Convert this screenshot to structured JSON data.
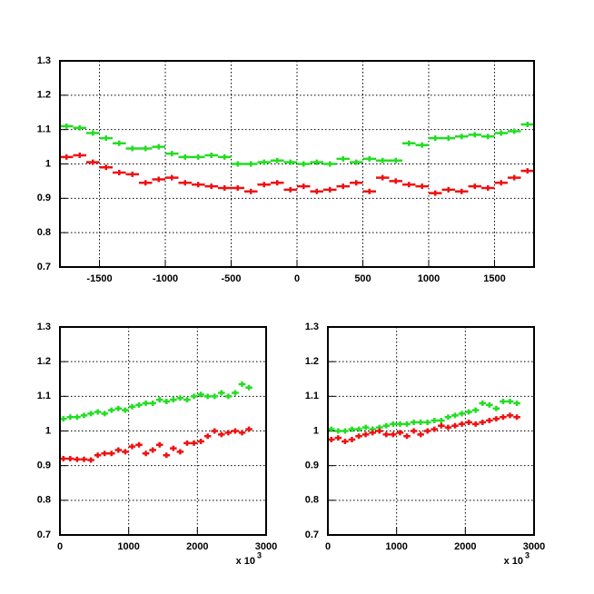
{
  "chart_data": [
    {
      "type": "scatter",
      "xlim": [
        -1800,
        1800
      ],
      "ylim": [
        0.7,
        1.3
      ],
      "xticks": [
        -1500,
        -1000,
        -500,
        0,
        500,
        1000,
        1500
      ],
      "yticks": [
        0.7,
        0.8,
        0.9,
        1,
        1.1,
        1.2,
        1.3
      ],
      "grid": true,
      "x": [
        -1750,
        -1650,
        -1550,
        -1450,
        -1350,
        -1250,
        -1150,
        -1050,
        -950,
        -850,
        -750,
        -650,
        -550,
        -450,
        -350,
        -250,
        -150,
        -50,
        50,
        150,
        250,
        350,
        450,
        550,
        650,
        750,
        850,
        950,
        1050,
        1150,
        1250,
        1350,
        1450,
        1550,
        1650,
        1750
      ],
      "series": [
        {
          "color": "#22dd22",
          "values": [
            1.11,
            1.105,
            1.09,
            1.075,
            1.06,
            1.045,
            1.045,
            1.05,
            1.03,
            1.02,
            1.02,
            1.025,
            1.02,
            1.0,
            1.0,
            1.005,
            1.01,
            1.005,
            1.0,
            1.005,
            1.0,
            1.015,
            1.005,
            1.015,
            1.01,
            1.01,
            1.06,
            1.055,
            1.075,
            1.075,
            1.08,
            1.085,
            1.08,
            1.09,
            1.095,
            1.115
          ]
        },
        {
          "color": "#ee1111",
          "values": [
            1.02,
            1.025,
            1.005,
            0.99,
            0.975,
            0.97,
            0.945,
            0.955,
            0.96,
            0.945,
            0.94,
            0.935,
            0.93,
            0.93,
            0.92,
            0.94,
            0.945,
            0.925,
            0.935,
            0.92,
            0.925,
            0.935,
            0.945,
            0.92,
            0.96,
            0.95,
            0.94,
            0.935,
            0.915,
            0.925,
            0.92,
            0.935,
            0.93,
            0.945,
            0.96,
            0.98
          ]
        }
      ]
    },
    {
      "type": "scatter",
      "xlim": [
        0,
        3000
      ],
      "ylim": [
        0.7,
        1.3
      ],
      "xticks": [
        0,
        1000,
        2000,
        3000
      ],
      "yticks": [
        0.7,
        0.8,
        0.9,
        1,
        1.1,
        1.2,
        1.3
      ],
      "grid": true,
      "x_scale_label": "x 10",
      "x_scale_exponent": "3",
      "x": [
        50,
        150,
        250,
        350,
        450,
        550,
        650,
        750,
        850,
        950,
        1050,
        1150,
        1250,
        1350,
        1450,
        1550,
        1650,
        1750,
        1850,
        1950,
        2050,
        2150,
        2250,
        2350,
        2450,
        2550,
        2650,
        2750
      ],
      "series": [
        {
          "color": "#22dd22",
          "values": [
            1.035,
            1.04,
            1.04,
            1.045,
            1.05,
            1.055,
            1.05,
            1.06,
            1.065,
            1.06,
            1.07,
            1.075,
            1.08,
            1.08,
            1.09,
            1.085,
            1.09,
            1.095,
            1.09,
            1.1,
            1.105,
            1.1,
            1.1,
            1.11,
            1.1,
            1.11,
            1.135,
            1.125
          ]
        },
        {
          "color": "#ee1111",
          "values": [
            0.92,
            0.92,
            0.918,
            0.918,
            0.916,
            0.93,
            0.935,
            0.935,
            0.945,
            0.94,
            0.955,
            0.96,
            0.935,
            0.945,
            0.96,
            0.93,
            0.95,
            0.94,
            0.965,
            0.965,
            0.97,
            0.985,
            1.0,
            0.99,
            0.995,
            1.0,
            0.995,
            1.005
          ]
        }
      ]
    },
    {
      "type": "scatter",
      "xlim": [
        0,
        3000
      ],
      "ylim": [
        0.7,
        1.3
      ],
      "xticks": [
        0,
        1000,
        2000,
        3000
      ],
      "yticks": [
        0.7,
        0.8,
        0.9,
        1,
        1.1,
        1.2,
        1.3
      ],
      "grid": true,
      "x_scale_label": "x 10",
      "x_scale_exponent": "3",
      "x": [
        50,
        150,
        250,
        350,
        450,
        550,
        650,
        750,
        850,
        950,
        1050,
        1150,
        1250,
        1350,
        1450,
        1550,
        1650,
        1750,
        1850,
        1950,
        2050,
        2150,
        2250,
        2350,
        2450,
        2550,
        2650,
        2750
      ],
      "series": [
        {
          "color": "#22dd22",
          "values": [
            1.005,
            1.0,
            1.0,
            1.005,
            1.005,
            1.01,
            1.005,
            1.01,
            1.015,
            1.02,
            1.02,
            1.02,
            1.025,
            1.025,
            1.025,
            1.03,
            1.03,
            1.04,
            1.045,
            1.05,
            1.055,
            1.06,
            1.08,
            1.075,
            1.065,
            1.085,
            1.085,
            1.08
          ]
        },
        {
          "color": "#ee1111",
          "values": [
            0.975,
            0.98,
            0.97,
            0.975,
            0.985,
            0.99,
            0.995,
            1.0,
            0.99,
            0.99,
            0.995,
            0.985,
            1.0,
            0.99,
            1.0,
            1.005,
            1.015,
            1.01,
            1.015,
            1.02,
            1.025,
            1.02,
            1.025,
            1.03,
            1.035,
            1.04,
            1.045,
            1.04
          ]
        }
      ]
    }
  ]
}
